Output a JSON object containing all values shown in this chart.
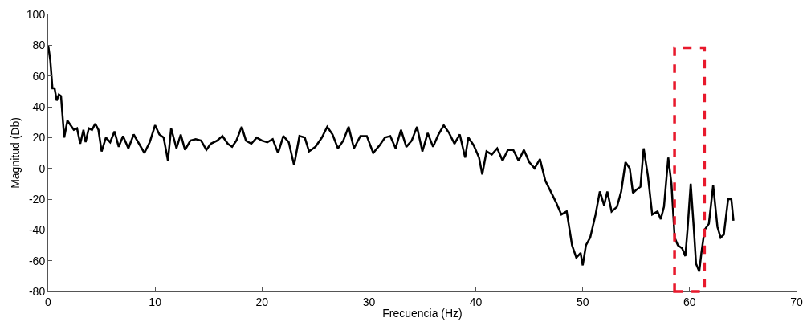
{
  "chart_data": {
    "type": "line",
    "xlabel": "Frecuencia (Hz)",
    "ylabel": "Magnitud (Db)",
    "xlim": [
      0,
      70
    ],
    "xticks": [
      0,
      10,
      20,
      30,
      40,
      50,
      60,
      70
    ],
    "ylim": [
      -80,
      100
    ],
    "yticks": [
      -80,
      -60,
      -40,
      -20,
      0,
      20,
      40,
      60,
      80,
      100
    ],
    "x": [
      0,
      0.2,
      0.4,
      0.6,
      0.8,
      1.0,
      1.2,
      1.5,
      1.8,
      2.1,
      2.4,
      2.7,
      3.0,
      3.3,
      3.5,
      3.8,
      4.1,
      4.4,
      4.7,
      5.0,
      5.4,
      5.8,
      6.2,
      6.6,
      7.0,
      7.5,
      8.0,
      8.5,
      9.0,
      9.5,
      10.0,
      10.4,
      10.8,
      11.2,
      11.5,
      12,
      12.4,
      12.8,
      13.3,
      13.8,
      14.3,
      14.8,
      15.2,
      15.8,
      16.3,
      16.8,
      17.2,
      17.6,
      18.1,
      18.5,
      19,
      19.5,
      20,
      20.5,
      21,
      21.5,
      22,
      22.5,
      23,
      23.5,
      24,
      24.4,
      25,
      25.6,
      26.1,
      26.6,
      27.1,
      27.6,
      28.1,
      28.6,
      29.2,
      29.8,
      30.4,
      31,
      31.5,
      32,
      32.5,
      33,
      33.5,
      34,
      34.5,
      35,
      35.5,
      36,
      36.5,
      37,
      37.5,
      38,
      38.5,
      39,
      39.3,
      39.8,
      40.3,
      40.6,
      41,
      41.5,
      42,
      42.5,
      43,
      43.5,
      44,
      44.5,
      45,
      45.5,
      46,
      46.5,
      47,
      47.5,
      48,
      48.5,
      49,
      49.4,
      49.8,
      50,
      50.3,
      50.7,
      51.2,
      51.6,
      52,
      52.3,
      52.7,
      53.2,
      53.6,
      54,
      54.4,
      54.7,
      55,
      55.4,
      55.7,
      56.1,
      56.5,
      57,
      57.3,
      57.6,
      58,
      58.3,
      58.6,
      58.9,
      59.3,
      59.6,
      59.8,
      60.1,
      60.4,
      60.6,
      60.9,
      61.1,
      61.4,
      61.8,
      62.2,
      62.6,
      62.9,
      63.2,
      63.6,
      63.9,
      64.1
    ],
    "series": [
      {
        "color": "#000000",
        "values": [
          80,
          70,
          52,
          52,
          44,
          48,
          47,
          20,
          31,
          28,
          25,
          26,
          16,
          25,
          17,
          26,
          25,
          29,
          25,
          11,
          20,
          17,
          24,
          14,
          21,
          13,
          22,
          16,
          10,
          17,
          28,
          22,
          20,
          5,
          26,
          13,
          22,
          12,
          18,
          19,
          18,
          12,
          16,
          18,
          21,
          16,
          14,
          18,
          27,
          18,
          16,
          20,
          18,
          17,
          19,
          10,
          21,
          17,
          2,
          21,
          20,
          11,
          14,
          20,
          27,
          22,
          13,
          18,
          27,
          13,
          21,
          21,
          10,
          15,
          20,
          21,
          13,
          25,
          14,
          18,
          27,
          11,
          23,
          14,
          22,
          28,
          23,
          16,
          22,
          7,
          20,
          15,
          7,
          -4,
          11,
          9,
          13,
          5,
          12,
          12,
          5,
          12,
          4,
          0,
          6,
          -8,
          -15,
          -22,
          -30,
          -28,
          -50,
          -58,
          -55,
          -63,
          -50,
          -45,
          -30,
          -15,
          -24,
          -15,
          -28,
          -25,
          -15,
          4,
          0,
          -16,
          -14,
          -12,
          13,
          -5,
          -30,
          -28,
          -33,
          -25,
          7,
          -10,
          -45,
          -50,
          -52,
          -57,
          -40,
          -10,
          -40,
          -62,
          -67,
          -55,
          -40,
          -36,
          -11,
          -38,
          -45,
          -43,
          -20,
          -20,
          -34
        ]
      }
    ]
  }
}
